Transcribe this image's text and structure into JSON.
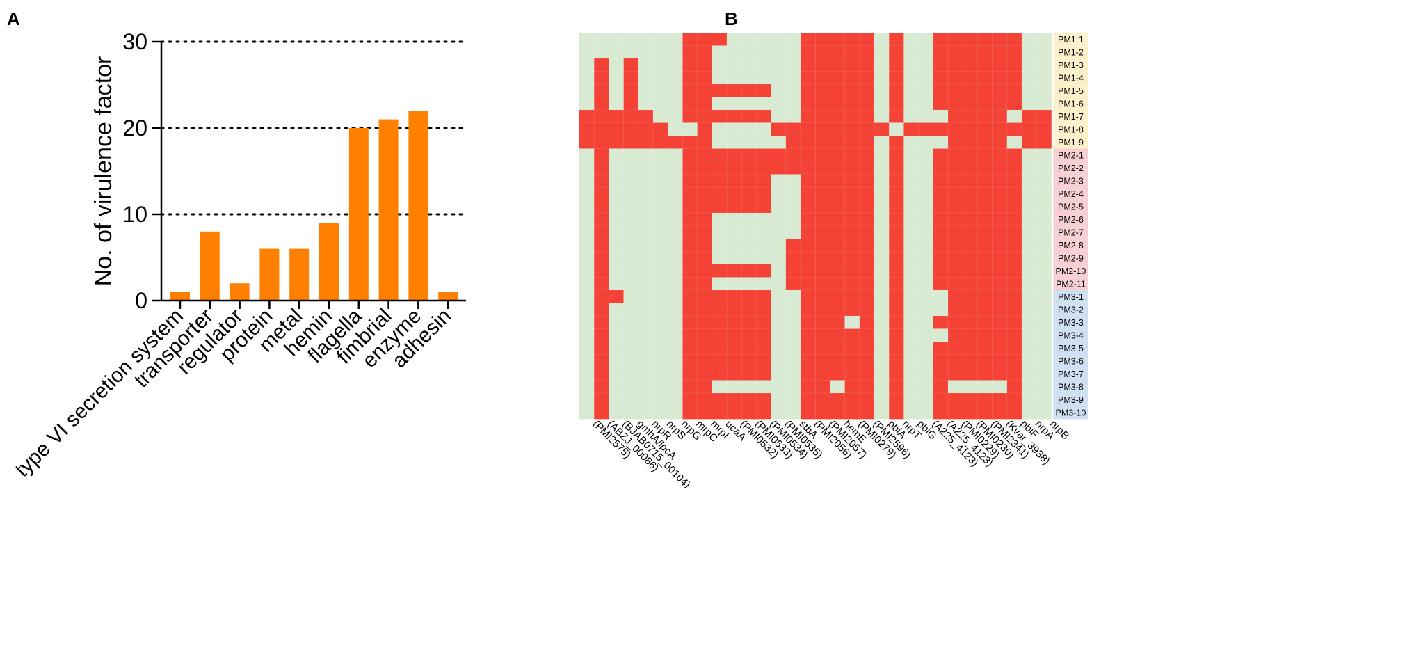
{
  "chart_data": [
    {
      "panel": "A",
      "type": "bar",
      "title": "",
      "xlabel": "",
      "ylabel": "No. of virulence factor",
      "ylim": [
        0,
        30
      ],
      "yticks": [
        "0",
        "10",
        "20",
        "30"
      ],
      "grid": "dotted horizontal at 10, 20, 30",
      "categories": [
        "type VI secretion system",
        "transporter",
        "regulator",
        "protein",
        "metal",
        "hemin",
        "flagella",
        "fimbrial",
        "enzyme",
        "adhesin"
      ],
      "values": [
        1,
        8,
        2,
        6,
        6,
        9,
        20,
        21,
        22,
        1
      ],
      "bar_color": "#ff8000"
    },
    {
      "panel": "B",
      "type": "heatmap",
      "present_color": "#f44336",
      "absent_color": "#d9ead3",
      "columns": [
        "(PMI2575)",
        "(ABZJ_00086)",
        "(BJAB0715_00104)",
        "gmhA/lpcA",
        "nrpR",
        "nrpS",
        "nrpG",
        "mrpC",
        "mrpI",
        "ucaA",
        "(PMI0532)",
        "(PMI0533)",
        "(PMI0534)",
        "(PMI0535)",
        "stbA",
        "(PMI2056)",
        "(PMI2057)",
        "hemE",
        "(PMI0279)",
        "(PMI2596)",
        "pbiA",
        "nrpT",
        "pbiG",
        "(A225_4123)",
        "(A225_4123)",
        "(PMI0229)",
        "(PMI0230)",
        "(PMI2341)",
        "(Kvar_3938)",
        "pbiF",
        "nrpA",
        "nrpB"
      ],
      "rows": [
        "PM1-1",
        "PM1-2",
        "PM1-3",
        "PM1-4",
        "PM1-5",
        "PM1-6",
        "PM1-7",
        "PM1-8",
        "PM1-9",
        "PM2-1",
        "PM2-2",
        "PM2-3",
        "PM2-4",
        "PM2-5",
        "PM2-6",
        "PM2-7",
        "PM2-8",
        "PM2-9",
        "PM2-10",
        "PM2-11",
        "PM3-1",
        "PM3-2",
        "PM3-3",
        "PM3-4",
        "PM3-5",
        "PM3-6",
        "PM3-7",
        "PM3-8",
        "PM3-9",
        "PM3-10"
      ],
      "row_groups": [
        {
          "name": "PM1",
          "color": "#fdf1cb"
        },
        {
          "name": "PM2",
          "color": "#f6d0d2"
        },
        {
          "name": "PM3",
          "color": "#cfe0f1"
        }
      ],
      "matrix": [
        "00000001110000011111010011111100",
        "00000001100000011111010011111100",
        "01010001100000011111010011111100",
        "01010001100000011111010011111100",
        "01010001111110011111010011111100",
        "01010001100000011111010011111100",
        "11111001111110011111010001111011",
        "11111100100001111111101111111111",
        "11111111100000111111010001111011",
        "01000001111111111111010011111100",
        "01000001111111111111010011111100",
        "01000001111110011111010011111100",
        "01000001111110011111010011111100",
        "01000001111110011111010011111100",
        "01000001100000011111010011111100",
        "01000001100000011111010011111100",
        "01000001100000111111010011111100",
        "01000001100000111111010011111100",
        "01000001111110111111010011111100",
        "01000001100000111111010011111100",
        "01100001111110011111010001111100",
        "01000001111110011111010001111100",
        "01000001111110011101010011111100",
        "01000001111110011111010001111100",
        "01000001111110011111010011111100",
        "01000001111110011111010011111100",
        "01000001111110011111010011111100",
        "01000001100000011011010010000100",
        "01000001111110011111010011111100",
        "01000001111110011111010011111100"
      ]
    }
  ]
}
